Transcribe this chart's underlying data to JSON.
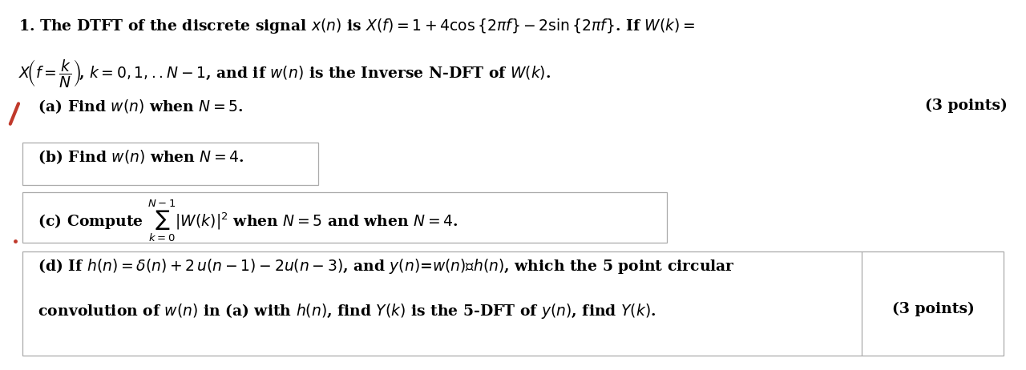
{
  "background_color": "#ffffff",
  "figsize": [
    12.8,
    4.62
  ],
  "dpi": 100,
  "line1": "1. The DTFT of the discrete signal $x(n)$ is $X(f) = 1 + 4\\cos\\{2\\pi f\\} - 2\\sin\\{2\\pi f\\}$. If $W(k) =$",
  "line2": "$X\\!\\left(f = \\dfrac{k}{N}\\right)\\!$, $k = 0,1,..N-1$, and if $w(n)$ is the Inverse N-DFT of $W(k)$.",
  "part_a": "   (a) Find $w(n)$ when $N = 5$.",
  "part_a_points": "(3 points)",
  "part_b": "   (b) Find $w(n)$ when $N = 4$.",
  "part_c": "   (c) Compute $\\sum_{k=0}^{N-1} |W(k)|^2$ when $N = 5$ and when $N = 4$.",
  "part_d_line1": "   (d) If $h(n) = \\delta(n) + 2\\,u(n-1) - 2u(n-3)$, and $y(n)$=$w(n)$ⓣ$h(n)$, which the 5 point circular",
  "part_d_line2": "   convolution of $w(n)$ in (a) with $h(n)$, find $Y(k)$ is the 5-DFT of $y(n)$, find $Y(k)$.",
  "part_d_points": "(3 points)",
  "text_color": "#000000",
  "marker_color": "#c0392b",
  "line_color": "#aaaaaa",
  "font_size": 13.5
}
